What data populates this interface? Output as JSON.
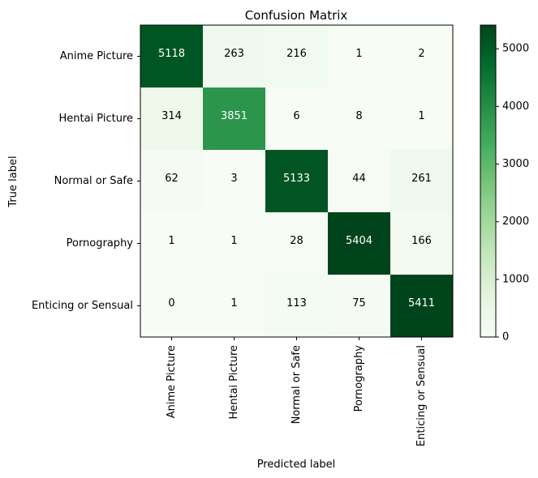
{
  "chart_data": {
    "type": "heatmap",
    "title": "Confusion Matrix",
    "xlabel": "Predicted label",
    "ylabel": "True label",
    "x_categories": [
      "Anime Picture",
      "Hentai Picture",
      "Normal or Safe",
      "Pornography",
      "Enticing or Sensual"
    ],
    "y_categories": [
      "Anime Picture",
      "Hentai Picture",
      "Normal or Safe",
      "Pornography",
      "Enticing or Sensual"
    ],
    "matrix": [
      [
        5118,
        263,
        216,
        1,
        2
      ],
      [
        314,
        3851,
        6,
        8,
        1
      ],
      [
        62,
        3,
        5133,
        44,
        261
      ],
      [
        1,
        1,
        28,
        5404,
        166
      ],
      [
        0,
        1,
        113,
        75,
        5411
      ]
    ],
    "colormap": "Greens",
    "colorbar": {
      "min": 0,
      "max": 5411,
      "ticks": [
        0,
        1000,
        2000,
        3000,
        4000,
        5000
      ]
    },
    "grid": false
  }
}
